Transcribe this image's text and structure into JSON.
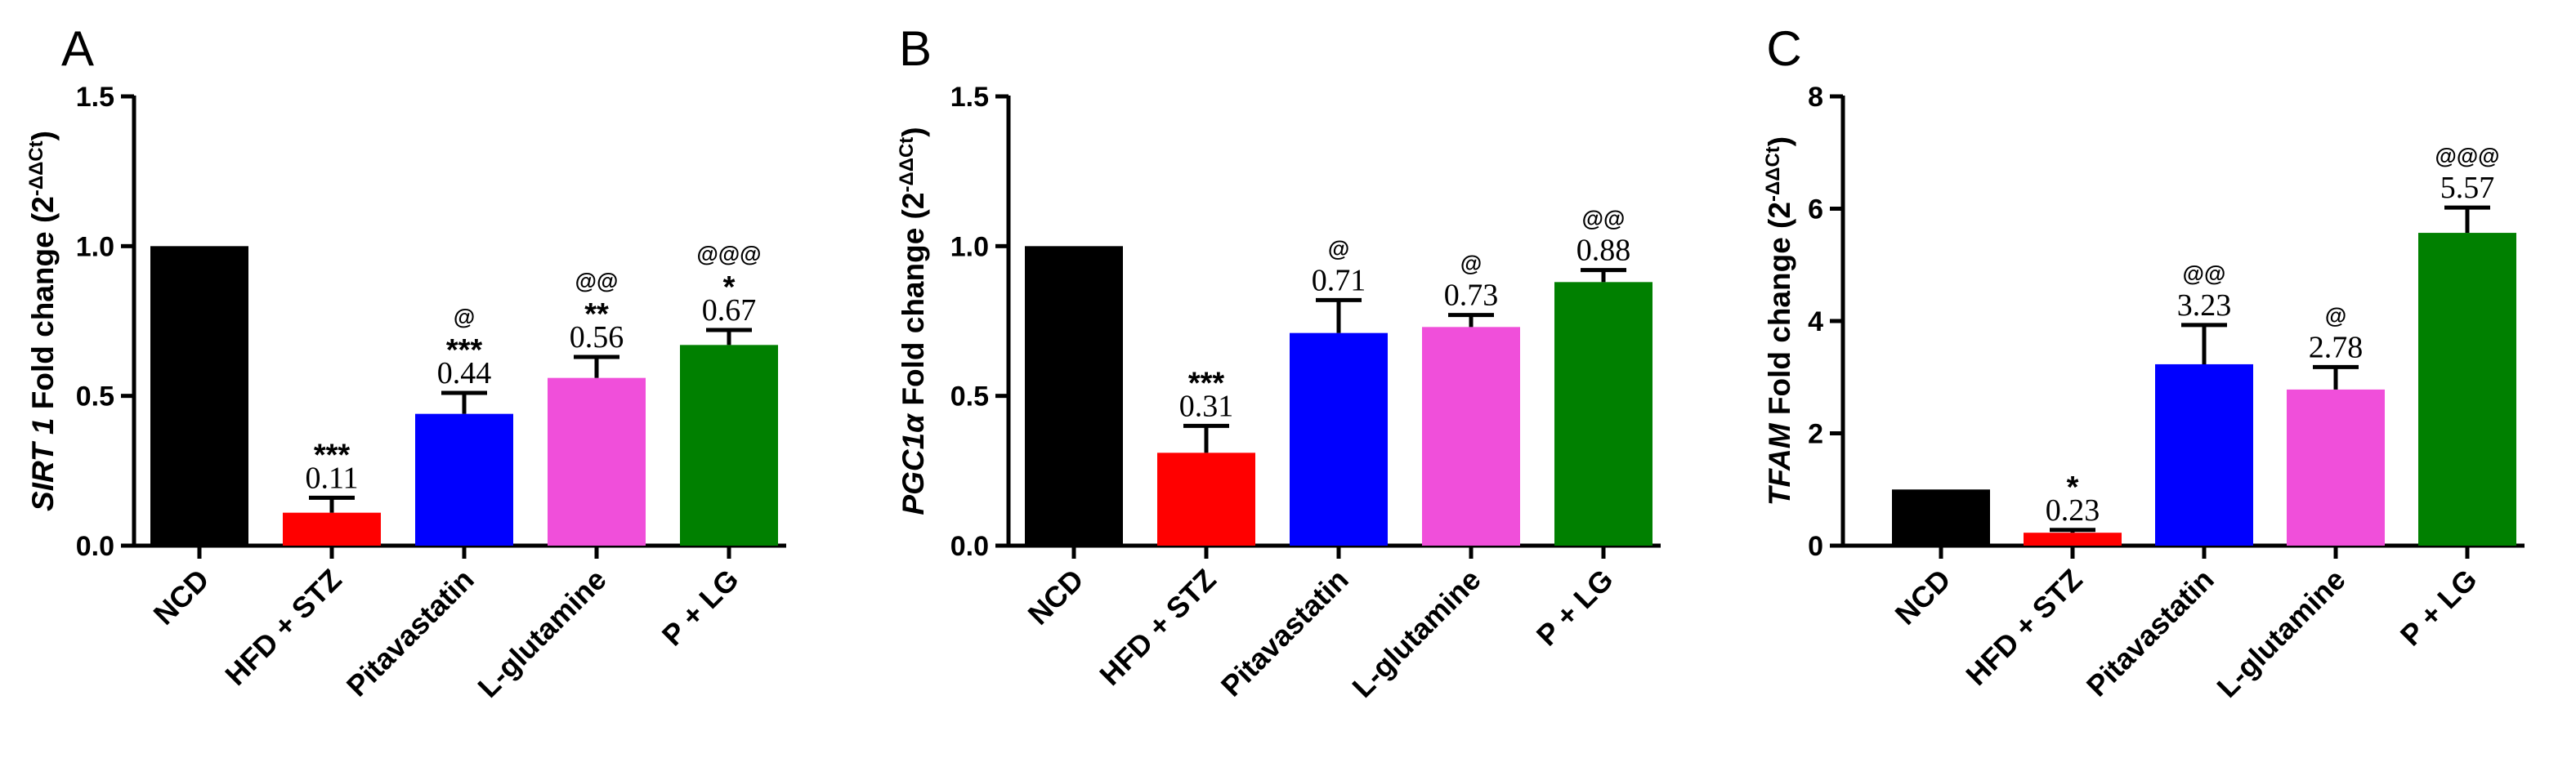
{
  "chart_data": [
    {
      "type": "bar",
      "panel": "A",
      "gene": "SIRT 1",
      "ylabel_suffix": " Fold change (2",
      "ylabel_sup": "-ΔΔCt",
      "ylabel_close": ")",
      "categories": [
        "NCD",
        "HFD + STZ",
        "Pitavastatin",
        "L-glutamine",
        "P + LG"
      ],
      "values": [
        1.0,
        0.11,
        0.44,
        0.56,
        0.67
      ],
      "errors": [
        0,
        0.05,
        0.07,
        0.07,
        0.05
      ],
      "value_labels": [
        "",
        "0.11",
        "0.44",
        "0.56",
        "0.67"
      ],
      "sig_vs_ncd": [
        "",
        "***",
        "***",
        "**",
        "*"
      ],
      "sig_vs_hfd": [
        "",
        "",
        "@",
        "@@",
        "@@@"
      ],
      "colors": [
        "#000000",
        "#ff0000",
        "#0000ff",
        "#f04fda",
        "#008000"
      ],
      "ylim": [
        0,
        1.5
      ],
      "yticks": [
        0,
        0.5,
        1.0,
        1.5
      ],
      "ytick_labels": [
        "0.0",
        "0.5",
        "1.0",
        "1.5"
      ]
    },
    {
      "type": "bar",
      "panel": "B",
      "gene": "PGC1α",
      "ylabel_suffix": " Fold change (2",
      "ylabel_sup": "-ΔΔCt",
      "ylabel_close": ")",
      "categories": [
        "NCD",
        "HFD + STZ",
        "Pitavastatin",
        "L-glutamine",
        "P + LG"
      ],
      "values": [
        1.0,
        0.31,
        0.71,
        0.73,
        0.88
      ],
      "errors": [
        0,
        0.09,
        0.11,
        0.04,
        0.04
      ],
      "value_labels": [
        "",
        "0.31",
        "0.71",
        "0.73",
        "0.88"
      ],
      "sig_vs_ncd": [
        "",
        "***",
        "",
        "",
        ""
      ],
      "sig_vs_hfd": [
        "",
        "",
        "@",
        "@",
        "@@"
      ],
      "colors": [
        "#000000",
        "#ff0000",
        "#0000ff",
        "#f04fda",
        "#008000"
      ],
      "ylim": [
        0,
        1.5
      ],
      "yticks": [
        0,
        0.5,
        1.0,
        1.5
      ],
      "ytick_labels": [
        "0.0",
        "0.5",
        "1.0",
        "1.5"
      ]
    },
    {
      "type": "bar",
      "panel": "C",
      "gene": "TFAM",
      "ylabel_suffix": " Fold change (2",
      "ylabel_sup": "-ΔΔCt",
      "ylabel_close": ")",
      "categories": [
        "NCD",
        "HFD + STZ",
        "Pitavastatin",
        "L-glutamine",
        "P + LG"
      ],
      "values": [
        1.0,
        0.23,
        3.23,
        2.78,
        5.57
      ],
      "errors": [
        0,
        0.05,
        0.7,
        0.4,
        0.45
      ],
      "value_labels": [
        "",
        "0.23",
        "3.23",
        "2.78",
        "5.57"
      ],
      "sig_vs_ncd": [
        "",
        "*",
        "",
        "",
        ""
      ],
      "sig_vs_hfd": [
        "",
        "",
        "@@",
        "@",
        "@@@"
      ],
      "colors": [
        "#000000",
        "#ff0000",
        "#0000ff",
        "#f04fda",
        "#008000"
      ],
      "ylim": [
        0,
        8
      ],
      "yticks": [
        0,
        2,
        4,
        6,
        8
      ],
      "ytick_labels": [
        "0",
        "2",
        "4",
        "6",
        "8"
      ]
    }
  ]
}
